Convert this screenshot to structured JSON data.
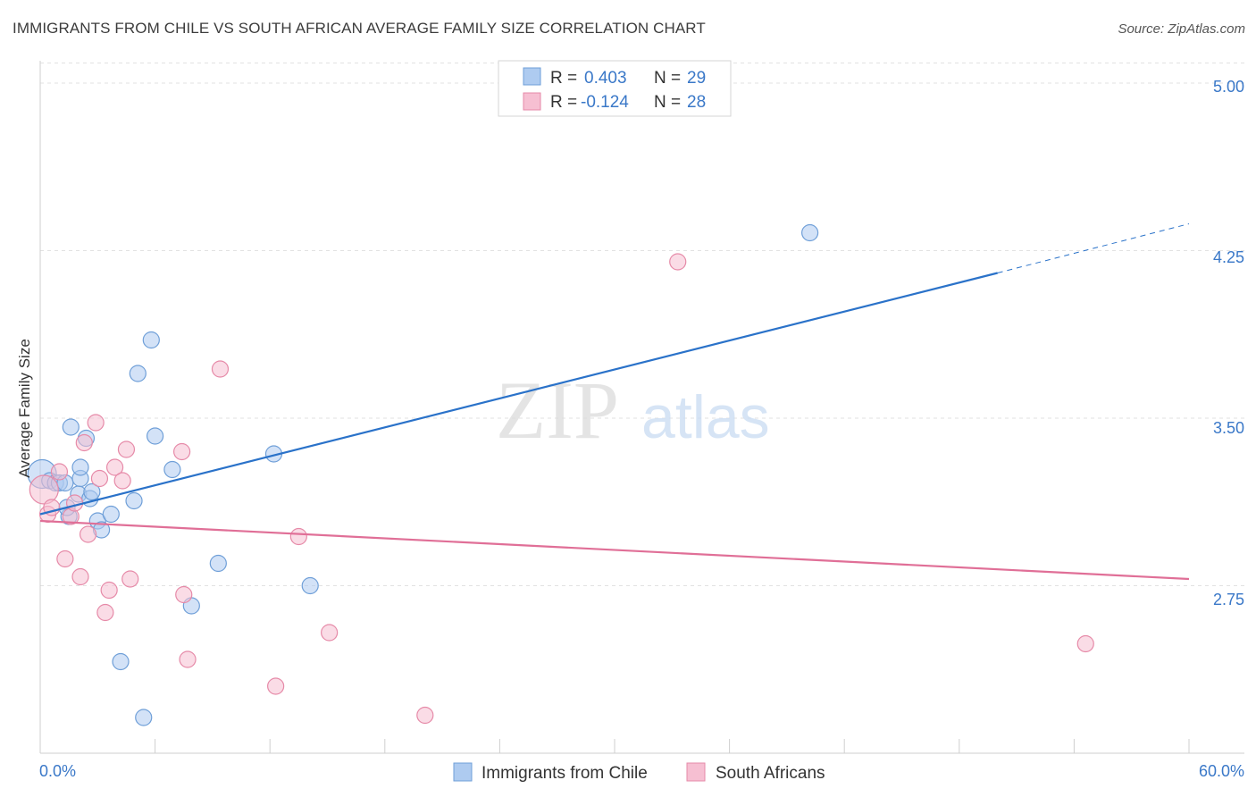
{
  "title": "IMMIGRANTS FROM CHILE VS SOUTH AFRICAN AVERAGE FAMILY SIZE CORRELATION CHART",
  "source": "Source: ZipAtlas.com",
  "watermark": {
    "zip": "ZIP",
    "atlas": "atlas"
  },
  "colors": {
    "blue_fill": "#aecbf0",
    "blue_stroke": "#6f9fd8",
    "blue_line": "#2a72c9",
    "pink_fill": "#f6bfd2",
    "pink_stroke": "#e68aa8",
    "pink_line": "#e06f97",
    "axis_text": "#3a78c8",
    "grid": "#e2e2e2"
  },
  "chart_data": {
    "type": "scatter",
    "ylabel": "Average Family Size",
    "xlim": [
      0,
      60
    ],
    "ylim": [
      2.0,
      5.1
    ],
    "x_tick_labels": [
      "0.0%",
      "60.0%"
    ],
    "y_ticks": [
      5.0,
      4.25,
      3.5,
      2.75
    ],
    "y_tick_labels": [
      "5.00",
      "4.25",
      "3.50",
      "2.75"
    ],
    "legend": [
      {
        "r_label": "R =",
        "r_value": "0.403",
        "n_label": "N =",
        "n_value": "29"
      },
      {
        "r_label": "R =",
        "r_value": "-0.124",
        "n_label": "N =",
        "n_value": "28"
      }
    ],
    "series": [
      {
        "name": "Immigrants from Chile",
        "color": "blue",
        "trend": {
          "x0": 0,
          "y0": 3.07,
          "x1": 50,
          "y1": 4.15,
          "dash_to_x": 60,
          "dash_to_y": 4.37
        },
        "points": [
          [
            0.1,
            3.25,
            16
          ],
          [
            0.5,
            3.22,
            9
          ],
          [
            0.8,
            3.21,
            9
          ],
          [
            1.0,
            3.21,
            9
          ],
          [
            1.5,
            3.06,
            9
          ],
          [
            1.3,
            3.21,
            9
          ],
          [
            1.4,
            3.1,
            9
          ],
          [
            1.6,
            3.46,
            9
          ],
          [
            2.0,
            3.16,
            9
          ],
          [
            2.1,
            3.23,
            9
          ],
          [
            2.1,
            3.28,
            9
          ],
          [
            2.4,
            3.41,
            9
          ],
          [
            2.6,
            3.14,
            9
          ],
          [
            2.7,
            3.17,
            9
          ],
          [
            3.0,
            3.04,
            9
          ],
          [
            3.2,
            3.0,
            9
          ],
          [
            3.7,
            3.07,
            9
          ],
          [
            4.2,
            2.41,
            9
          ],
          [
            4.9,
            3.13,
            9
          ],
          [
            5.1,
            3.7,
            9
          ],
          [
            5.4,
            2.16,
            9
          ],
          [
            5.8,
            3.85,
            9
          ],
          [
            6.0,
            3.42,
            9
          ],
          [
            6.9,
            3.27,
            9
          ],
          [
            7.9,
            2.66,
            9
          ],
          [
            9.3,
            2.85,
            9
          ],
          [
            12.2,
            3.34,
            9
          ],
          [
            14.1,
            2.75,
            9
          ],
          [
            40.2,
            4.33,
            9
          ]
        ]
      },
      {
        "name": "South Africans",
        "color": "pink",
        "trend": {
          "x0": 0,
          "y0": 3.04,
          "x1": 60,
          "y1": 2.78
        },
        "points": [
          [
            0.2,
            3.18,
            16
          ],
          [
            0.4,
            3.07,
            9
          ],
          [
            0.6,
            3.1,
            9
          ],
          [
            1.0,
            3.26,
            9
          ],
          [
            1.3,
            2.87,
            9
          ],
          [
            1.6,
            3.06,
            9
          ],
          [
            1.8,
            3.12,
            9
          ],
          [
            2.1,
            2.79,
            9
          ],
          [
            2.3,
            3.39,
            9
          ],
          [
            2.5,
            2.98,
            9
          ],
          [
            2.9,
            3.48,
            9
          ],
          [
            3.1,
            3.23,
            9
          ],
          [
            3.4,
            2.63,
            9
          ],
          [
            3.6,
            2.73,
            9
          ],
          [
            3.9,
            3.28,
            9
          ],
          [
            4.3,
            3.22,
            9
          ],
          [
            4.5,
            3.36,
            9
          ],
          [
            4.7,
            2.78,
            9
          ],
          [
            7.4,
            3.35,
            9
          ],
          [
            7.5,
            2.71,
            9
          ],
          [
            7.7,
            2.42,
            9
          ],
          [
            9.4,
            3.72,
            9
          ],
          [
            12.3,
            2.3,
            9
          ],
          [
            13.5,
            2.97,
            9
          ],
          [
            15.1,
            2.54,
            9
          ],
          [
            20.1,
            2.17,
            9
          ],
          [
            33.3,
            4.2,
            9
          ],
          [
            54.6,
            2.49,
            9
          ]
        ]
      }
    ]
  }
}
